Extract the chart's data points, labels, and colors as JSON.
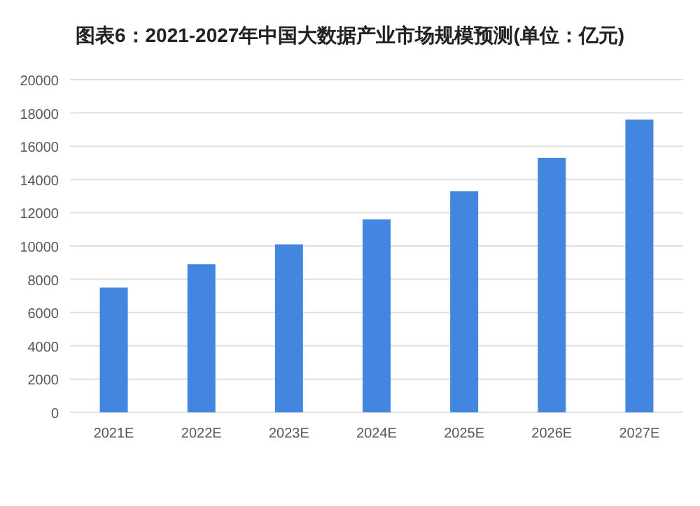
{
  "chart_data": {
    "type": "bar",
    "title": "图表6：2021-2027年中国大数据产业市场规模预测(单位：亿元)",
    "categories": [
      "2021E",
      "2022E",
      "2023E",
      "2024E",
      "2025E",
      "2026E",
      "2027E"
    ],
    "values": [
      7500,
      8900,
      10100,
      11600,
      13300,
      15300,
      17600
    ],
    "color": "#4286e0",
    "ylim": [
      0,
      20000
    ],
    "yticks": [
      0,
      2000,
      4000,
      6000,
      8000,
      10000,
      12000,
      14000,
      16000,
      18000,
      20000
    ],
    "grid": "y"
  }
}
